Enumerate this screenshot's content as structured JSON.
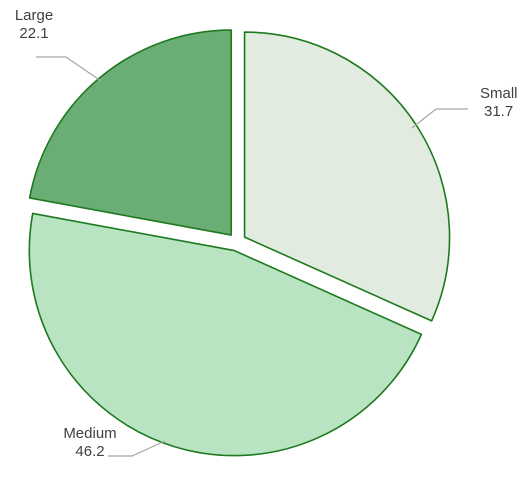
{
  "chart_data": {
    "type": "pie",
    "title": "",
    "legend": "none",
    "exploded": true,
    "slices": [
      {
        "label": "Small",
        "value": 31.7,
        "color": "#e2ebdf"
      },
      {
        "label": "Medium",
        "value": 46.2,
        "color": "#b8e4c2"
      },
      {
        "label": "Large",
        "value": 22.1,
        "color": "#6aad75"
      }
    ],
    "stroke_color": "#1e7a1e"
  }
}
